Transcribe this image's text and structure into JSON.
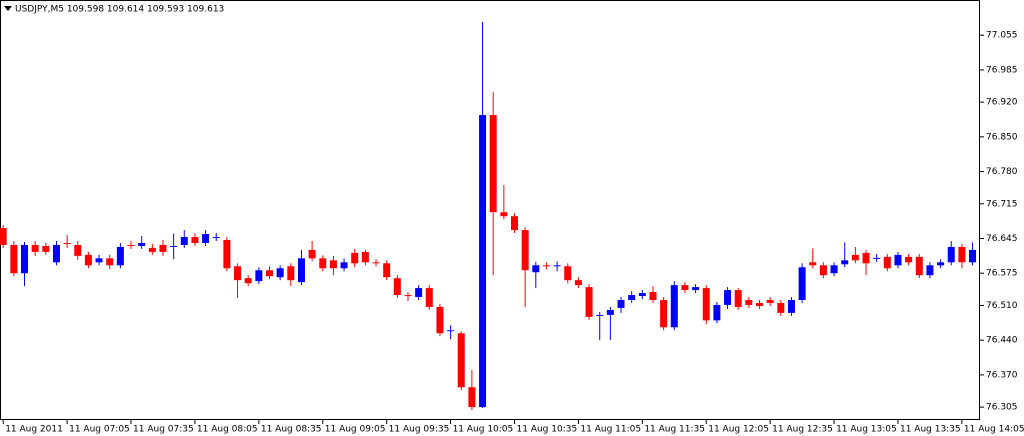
{
  "chart_data": {
    "type": "candlestick",
    "title": "USDJPY,M5  109.598 109.614 109.593 109.613",
    "categories": [
      "11 Aug 2011",
      null,
      null,
      null,
      null,
      null,
      "11 Aug 07:05",
      null,
      null,
      null,
      null,
      null,
      "11 Aug 07:35",
      null,
      null,
      null,
      null,
      null,
      "11 Aug 08:05",
      null,
      null,
      null,
      null,
      null,
      "11 Aug 08:35",
      null,
      null,
      null,
      null,
      null,
      "11 Aug 09:05",
      null,
      null,
      null,
      null,
      null,
      "11 Aug 09:35",
      null,
      null,
      null,
      null,
      null,
      "11 Aug 10:05",
      null,
      null,
      null,
      null,
      null,
      "11 Aug 10:35",
      null,
      null,
      null,
      null,
      null,
      "11 Aug 11:05",
      null,
      null,
      null,
      null,
      null,
      "11 Aug 11:35",
      null,
      null,
      null,
      null,
      null,
      "11 Aug 12:05",
      null,
      null,
      null,
      null,
      null,
      "11 Aug 12:35",
      null,
      null,
      null,
      null,
      null,
      "11 Aug 13:05",
      null,
      null,
      null,
      null,
      null,
      "11 Aug 13:35",
      null,
      null,
      null,
      null,
      null,
      "11 Aug 14:05",
      null
    ],
    "open": [
      76.666,
      76.632,
      76.575,
      76.632,
      76.63,
      76.597,
      76.636,
      76.632,
      76.612,
      76.597,
      76.605,
      76.591,
      76.632,
      76.63,
      76.626,
      76.632,
      76.628,
      76.632,
      76.648,
      76.636,
      76.648,
      76.642,
      76.589,
      76.565,
      76.559,
      76.581,
      76.567,
      76.589,
      76.557,
      76.622,
      76.605,
      76.601,
      76.585,
      76.616,
      76.618,
      76.597,
      76.595,
      76.565,
      76.531,
      76.527,
      76.545,
      76.507,
      76.458,
      76.454,
      76.345,
      76.305,
      76.894,
      76.698,
      76.69,
      76.662,
      76.577,
      76.591,
      76.589,
      76.589,
      76.561,
      76.547,
      76.489,
      76.491,
      76.505,
      76.521,
      76.529,
      76.537,
      76.521,
      76.466,
      76.551,
      76.541,
      76.545,
      76.48,
      76.511,
      76.541,
      76.521,
      76.515,
      76.521,
      76.515,
      76.495,
      76.521,
      76.597,
      76.591,
      76.575,
      76.593,
      76.612,
      76.616,
      76.606,
      76.608,
      76.591,
      76.608,
      76.608,
      76.571,
      76.591,
      76.597,
      76.628,
      76.597
    ],
    "high": [
      76.672,
      76.64,
      76.638,
      76.64,
      76.636,
      76.64,
      76.652,
      76.64,
      76.618,
      76.612,
      76.612,
      76.636,
      76.64,
      76.65,
      76.634,
      76.642,
      76.655,
      76.662,
      76.656,
      76.662,
      76.656,
      76.648,
      76.595,
      76.571,
      76.587,
      76.589,
      76.591,
      76.595,
      76.622,
      76.64,
      76.611,
      76.61,
      76.605,
      76.624,
      76.622,
      76.603,
      76.601,
      76.571,
      76.537,
      76.551,
      76.551,
      76.513,
      76.47,
      76.458,
      76.38,
      77.082,
      76.94,
      76.753,
      76.696,
      76.668,
      76.598,
      76.597,
      76.599,
      76.595,
      76.567,
      76.553,
      76.497,
      76.507,
      76.527,
      76.539,
      76.541,
      76.549,
      76.527,
      76.559,
      76.557,
      76.553,
      76.551,
      76.517,
      76.547,
      76.545,
      76.527,
      76.521,
      76.527,
      76.521,
      76.527,
      76.595,
      76.625,
      76.597,
      76.597,
      76.637,
      76.628,
      76.622,
      76.614,
      76.614,
      76.618,
      76.614,
      76.614,
      76.597,
      76.603,
      76.64,
      76.634,
      76.637
    ],
    "low": [
      76.626,
      76.569,
      76.549,
      76.61,
      76.612,
      76.591,
      76.626,
      76.602,
      76.585,
      76.591,
      76.583,
      76.585,
      76.624,
      76.624,
      76.612,
      76.61,
      76.603,
      76.626,
      76.63,
      76.63,
      76.64,
      76.579,
      76.525,
      76.549,
      76.553,
      76.563,
      76.561,
      76.549,
      76.551,
      76.599,
      76.579,
      76.571,
      76.579,
      76.587,
      76.591,
      76.589,
      76.561,
      76.525,
      76.519,
      76.521,
      76.501,
      76.448,
      76.442,
      76.339,
      76.299,
      76.303,
      76.571,
      76.684,
      76.656,
      76.507,
      76.545,
      76.583,
      76.579,
      76.555,
      76.545,
      76.481,
      76.44,
      76.44,
      76.495,
      76.515,
      76.523,
      76.515,
      76.46,
      76.46,
      76.535,
      76.535,
      76.472,
      76.474,
      76.503,
      76.501,
      76.505,
      76.503,
      76.509,
      76.489,
      76.489,
      76.515,
      76.585,
      76.565,
      76.569,
      76.587,
      76.595,
      76.571,
      76.598,
      76.579,
      76.585,
      76.591,
      76.565,
      76.565,
      76.585,
      76.591,
      76.585,
      76.591
    ],
    "close": [
      76.632,
      76.575,
      76.632,
      76.618,
      76.618,
      76.632,
      76.634,
      76.61,
      76.591,
      76.605,
      76.591,
      76.628,
      76.63,
      76.636,
      76.618,
      76.618,
      76.63,
      76.648,
      76.636,
      76.654,
      76.648,
      76.585,
      76.561,
      76.555,
      76.581,
      76.569,
      76.585,
      76.561,
      76.605,
      76.605,
      76.585,
      76.585,
      76.597,
      76.595,
      76.597,
      76.595,
      76.567,
      76.531,
      76.529,
      76.545,
      76.507,
      76.454,
      76.46,
      76.345,
      76.305,
      76.894,
      76.698,
      76.69,
      76.662,
      76.581,
      76.591,
      76.589,
      76.591,
      76.561,
      76.551,
      76.487,
      76.491,
      76.501,
      76.521,
      76.531,
      76.535,
      76.521,
      76.466,
      76.551,
      76.541,
      76.547,
      76.48,
      76.511,
      76.541,
      76.507,
      76.511,
      76.509,
      76.515,
      76.495,
      76.521,
      76.587,
      76.591,
      76.571,
      76.591,
      76.601,
      76.601,
      76.595,
      76.606,
      76.585,
      76.612,
      76.597,
      76.571,
      76.591,
      76.597,
      76.628,
      76.597,
      76.622
    ],
    "up_color": "#0000ff",
    "down_color": "#ff0000",
    "ylim": [
      76.279,
      77.126
    ],
    "yticks": [
      77.055,
      76.985,
      {
        "value": 76.92,
        "label": "76.920"
      },
      {
        "value": 76.85,
        "label": "76.850"
      },
      {
        "value": 76.78,
        "label": "76.780"
      },
      76.715,
      76.645,
      76.575,
      {
        "value": 76.51,
        "label": "76.510"
      },
      {
        "value": 76.44,
        "label": "76.440"
      },
      {
        "value": 76.37,
        "label": "76.370"
      },
      76.305
    ],
    "grid": false
  }
}
